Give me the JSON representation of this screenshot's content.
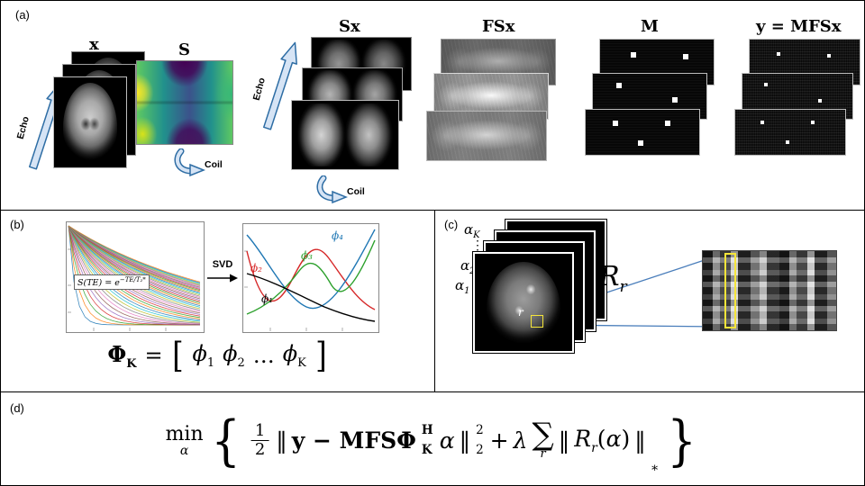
{
  "colors": {
    "arrow_fill": "#d6e4f5",
    "arrow_stroke": "#2e6da4",
    "highlight_yellow": "#f5e53a",
    "connector_blue": "#4a7ebb",
    "curve_palette": [
      "#1f77b4",
      "#ff7f0e",
      "#2ca02c",
      "#d62728",
      "#9467bd",
      "#8c564b",
      "#e377c2",
      "#7f7f7f",
      "#bcbd22",
      "#17becf"
    ]
  },
  "a": {
    "label": "(a)",
    "x_title": "x",
    "s_title": "S",
    "sx_title": "Sx",
    "fsx_title": "FSx",
    "m_title": "M",
    "y_title": "y = MFSx",
    "echo": "Echo",
    "coil": "Coil"
  },
  "b": {
    "label": "(b)",
    "svd": "SVD",
    "decay_eq_base": "S(TE) = e",
    "decay_eq_exp": "−TE/T₂*",
    "phi1": "ϕ₁",
    "phi2": "ϕ₂",
    "phi3": "ϕ₃",
    "phi4": "ϕ₄",
    "eq": {
      "Phi": "Φ",
      "K": "K",
      "eq": "=",
      "lb": "[",
      "p1": "ϕ",
      "s1": "1",
      "p2": "ϕ",
      "s2": "2",
      "dots": "…",
      "pK": "ϕ",
      "sK": "K",
      "rb": "]"
    }
  },
  "c": {
    "label": "(c)",
    "alphas": [
      {
        "sym": "α",
        "sub": "K"
      },
      {
        "sym": "⋮",
        "sub": ""
      },
      {
        "sym": "α",
        "sub": "2"
      },
      {
        "sym": "α",
        "sub": "1"
      }
    ],
    "r": "r",
    "Rr_sym": "R",
    "Rr_sub": "r"
  },
  "d": {
    "label": "(d)",
    "eq": {
      "min": "min",
      "min_sub": "α",
      "lbrace": "{",
      "half_num": "1",
      "half_den": "2",
      "n1_open": "‖",
      "bold1": "y − MFSΦ",
      "phi_sup": "H",
      "phi_sub": "K",
      "alpha1": "α",
      "n1_close": "‖",
      "n1_sup": "2",
      "n1_sub": "2",
      "plus": "+",
      "lambda": "λ",
      "sum": "∑",
      "sum_sub": "r",
      "n2_open": "‖",
      "R": "R",
      "R_sub": "r",
      "lp": "(",
      "alpha2": "α",
      "rp": ")",
      "n2_close": "‖",
      "n2_sub": "∗",
      "rbrace": "}"
    }
  }
}
